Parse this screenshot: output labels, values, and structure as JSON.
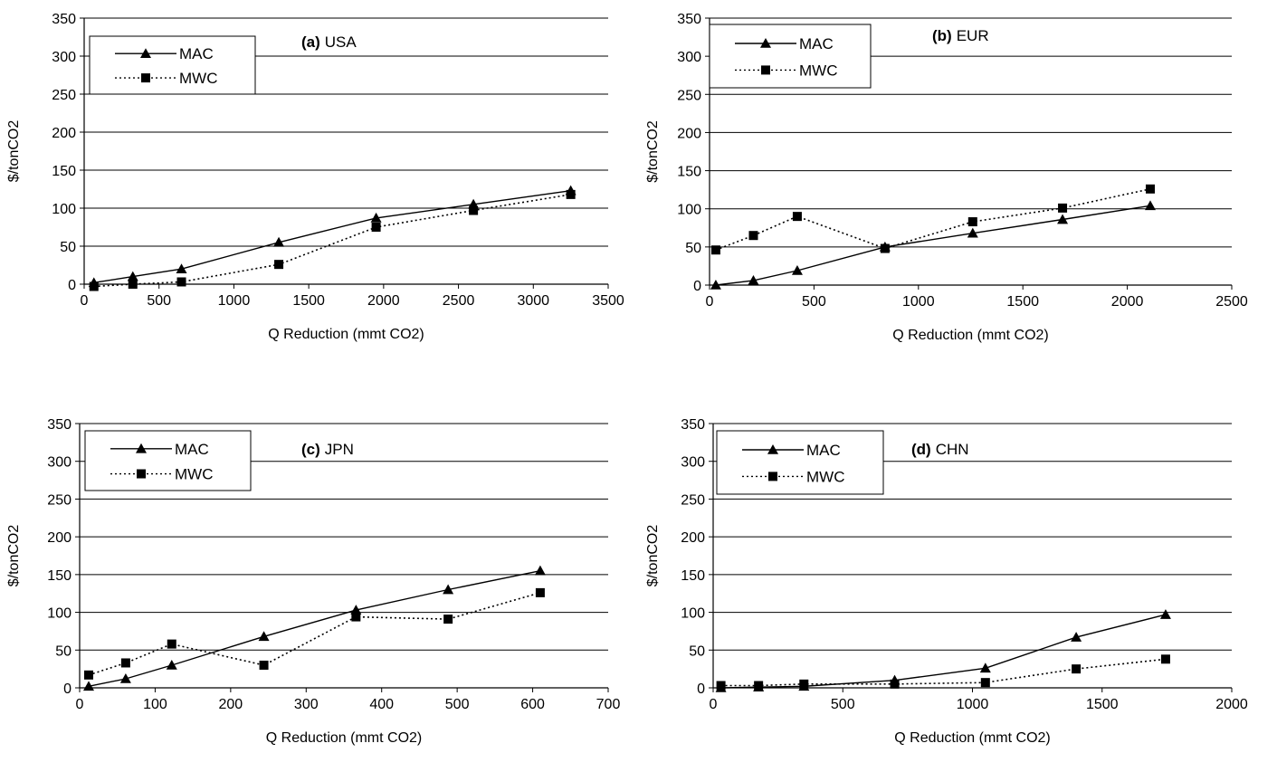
{
  "chart_data": [
    {
      "type": "line",
      "panel_tag": "(a)",
      "panel_name": "USA",
      "xlabel": "Q Reduction (mmt CO2)",
      "ylabel": "$/tonCO2",
      "xlim": [
        0,
        3500
      ],
      "ylim": [
        0,
        350
      ],
      "xticks": [
        0,
        500,
        1000,
        1500,
        2000,
        2500,
        3000,
        3500
      ],
      "yticks": [
        0,
        50,
        100,
        150,
        200,
        250,
        300,
        350
      ],
      "grid": "horizontal",
      "legend_position": "top-left",
      "series": [
        {
          "name": "MAC",
          "marker": "triangle",
          "style": "solid",
          "x": [
            65,
            325,
            650,
            1300,
            1950,
            2600,
            3250
          ],
          "y": [
            2,
            10,
            20,
            55,
            87,
            105,
            123
          ]
        },
        {
          "name": "MWC",
          "marker": "square",
          "style": "dotted",
          "x": [
            65,
            325,
            650,
            1300,
            1950,
            2600,
            3250
          ],
          "y": [
            -3,
            0,
            3,
            26,
            75,
            97,
            118
          ]
        }
      ]
    },
    {
      "type": "line",
      "panel_tag": "(b)",
      "panel_name": "EUR",
      "xlabel": "Q Reduction (mmt CO2)",
      "ylabel": "$/tonCO2",
      "xlim": [
        0,
        2500
      ],
      "ylim": [
        0,
        350
      ],
      "xticks": [
        0,
        500,
        1000,
        1500,
        2000,
        2500
      ],
      "yticks": [
        0,
        50,
        100,
        150,
        200,
        250,
        300,
        350
      ],
      "grid": "horizontal",
      "legend_position": "top-left",
      "series": [
        {
          "name": "MAC",
          "marker": "triangle",
          "style": "solid",
          "x": [
            30,
            210,
            420,
            840,
            1260,
            1690,
            2110
          ],
          "y": [
            0,
            6,
            19,
            50,
            68,
            86,
            104
          ]
        },
        {
          "name": "MWC",
          "marker": "square",
          "style": "dotted",
          "x": [
            30,
            210,
            420,
            840,
            1260,
            1690,
            2110
          ],
          "y": [
            46,
            65,
            90,
            48,
            83,
            101,
            126
          ]
        }
      ]
    },
    {
      "type": "line",
      "panel_tag": "(c)",
      "panel_name": "JPN",
      "xlabel": "Q Reduction (mmt CO2)",
      "ylabel": "$/tonCO2",
      "xlim": [
        0,
        700
      ],
      "ylim": [
        0,
        350
      ],
      "xticks": [
        0,
        100,
        200,
        300,
        400,
        500,
        600,
        700
      ],
      "yticks": [
        0,
        50,
        100,
        150,
        200,
        250,
        300,
        350
      ],
      "grid": "horizontal",
      "legend_position": "top-left",
      "series": [
        {
          "name": "MAC",
          "marker": "triangle",
          "style": "solid",
          "x": [
            12,
            61,
            122,
            244,
            366,
            488,
            610
          ],
          "y": [
            2,
            12,
            30,
            68,
            103,
            130,
            155
          ]
        },
        {
          "name": "MWC",
          "marker": "square",
          "style": "dotted",
          "x": [
            12,
            61,
            122,
            244,
            366,
            488,
            610
          ],
          "y": [
            17,
            33,
            58,
            30,
            94,
            91,
            126
          ]
        }
      ]
    },
    {
      "type": "line",
      "panel_tag": "(d)",
      "panel_name": "CHN",
      "xlabel": "Q Reduction (mmt CO2)",
      "ylabel": "$/tonCO2",
      "xlim": [
        0,
        2000
      ],
      "ylim": [
        0,
        350
      ],
      "xticks": [
        0,
        500,
        1000,
        1500,
        2000
      ],
      "yticks": [
        0,
        50,
        100,
        150,
        200,
        250,
        300,
        350
      ],
      "grid": "horizontal",
      "legend_position": "top-left",
      "series": [
        {
          "name": "MAC",
          "marker": "triangle",
          "style": "solid",
          "x": [
            30,
            175,
            350,
            700,
            1050,
            1400,
            1745
          ],
          "y": [
            0,
            1,
            2,
            10,
            26,
            67,
            97
          ]
        },
        {
          "name": "MWC",
          "marker": "square",
          "style": "dotted",
          "x": [
            30,
            175,
            350,
            700,
            1050,
            1400,
            1745
          ],
          "y": [
            3,
            3,
            5,
            5,
            7,
            25,
            38
          ]
        }
      ]
    }
  ]
}
